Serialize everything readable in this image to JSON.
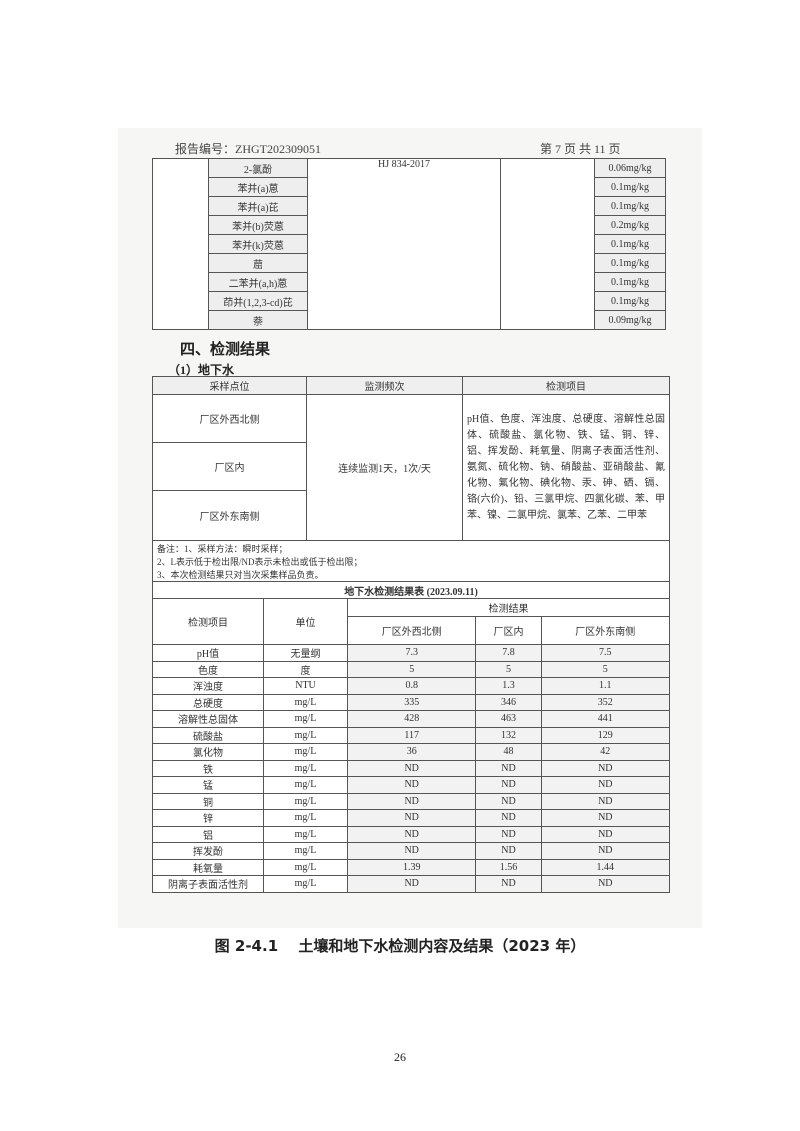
{
  "header": {
    "report_no": "报告编号：ZHGT202309051",
    "page_info": "第 7 页 共 11 页"
  },
  "soil_table": {
    "method": "HJ 834-2017",
    "rows": [
      {
        "item": "2-氯酚",
        "limit": "0.06mg/kg"
      },
      {
        "item": "苯并(a)蒽",
        "limit": "0.1mg/kg"
      },
      {
        "item": "苯并(a)芘",
        "limit": "0.1mg/kg"
      },
      {
        "item": "苯并(b)荧蒽",
        "limit": "0.2mg/kg"
      },
      {
        "item": "苯并(k)荧蒽",
        "limit": "0.1mg/kg"
      },
      {
        "item": "䓛",
        "limit": "0.1mg/kg"
      },
      {
        "item": "二苯并(a,h)蒽",
        "limit": "0.1mg/kg"
      },
      {
        "item": "茚并(1,2,3-cd)芘",
        "limit": "0.1mg/kg"
      },
      {
        "item": "萘",
        "limit": "0.09mg/kg"
      }
    ]
  },
  "section_title": "四、检测结果",
  "subsection_title": "（1）地下水",
  "plan_table": {
    "headers": [
      "采样点位",
      "监测频次",
      "检测项目"
    ],
    "sites": [
      "厂区外西北侧",
      "厂区内",
      "厂区外东南侧"
    ],
    "frequency": "连续监测1天，1次/天",
    "items": "pH值、色度、浑浊度、总硬度、溶解性总固体、硫酸盐、氯化物、铁、锰、铜、锌、铝、挥发酚、耗氧量、阴离子表面活性剂、氨氮、硫化物、钠、硝酸盐、亚硝酸盐、氰化物、氟化物、碘化物、汞、砷、硒、镉、铬(六价)、铅、三氯甲烷、四氯化碳、苯、甲苯、镍、二氯甲烷、氯苯、乙苯、二甲苯",
    "notes": [
      "备注：1、采样方法：瞬时采样；",
      "2、L表示低于检出限/ND表示未检出或低于检出限；",
      "3、本次检测结果只对当次采集样品负责。"
    ]
  },
  "result_table": {
    "title": "地下水检测结果表 (2023.09.11)",
    "col_item": "检测项目",
    "col_unit": "单位",
    "col_group": "检测结果",
    "sites": [
      "厂区外西北侧",
      "厂区内",
      "厂区外东南侧"
    ],
    "rows": [
      [
        "pH值",
        "无量纲",
        "7.3",
        "7.8",
        "7.5"
      ],
      [
        "色度",
        "度",
        "5",
        "5",
        "5"
      ],
      [
        "浑浊度",
        "NTU",
        "0.8",
        "1.3",
        "1.1"
      ],
      [
        "总硬度",
        "mg/L",
        "335",
        "346",
        "352"
      ],
      [
        "溶解性总固体",
        "mg/L",
        "428",
        "463",
        "441"
      ],
      [
        "硫酸盐",
        "mg/L",
        "117",
        "132",
        "129"
      ],
      [
        "氯化物",
        "mg/L",
        "36",
        "48",
        "42"
      ],
      [
        "铁",
        "mg/L",
        "ND",
        "ND",
        "ND"
      ],
      [
        "锰",
        "mg/L",
        "ND",
        "ND",
        "ND"
      ],
      [
        "铜",
        "mg/L",
        "ND",
        "ND",
        "ND"
      ],
      [
        "锌",
        "mg/L",
        "ND",
        "ND",
        "ND"
      ],
      [
        "铝",
        "mg/L",
        "ND",
        "ND",
        "ND"
      ],
      [
        "挥发酚",
        "mg/L",
        "ND",
        "ND",
        "ND"
      ],
      [
        "耗氧量",
        "mg/L",
        "1.39",
        "1.56",
        "1.44"
      ],
      [
        "阴离子表面活性剂",
        "mg/L",
        "ND",
        "ND",
        "ND"
      ]
    ]
  },
  "caption": "图 2-4.1　 土壤和地下水检测内容及结果（2023 年）",
  "page_number": "26"
}
